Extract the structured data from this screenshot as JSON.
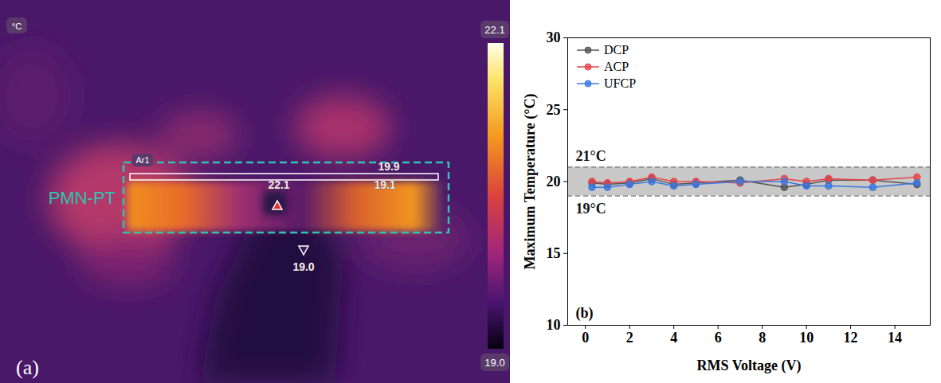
{
  "thermal_image": {
    "panel_label": "(a)",
    "unit": "°C",
    "colorbar_max": 22.1,
    "colorbar_min": {
      "value": 19.0,
      "label": "19.0"
    },
    "sample_label": "PMN-PT",
    "area": {
      "name": "Ar1",
      "value": 19.9
    },
    "hot_spot": 22.1,
    "spot": 19.1,
    "cold_spot": {
      "value": 19.0,
      "label": "19.0"
    }
  },
  "chart_data": {
    "type": "line",
    "panel_label": "(b)",
    "x_label": "RMS Voltage (V)",
    "y_label": "Maximum Temperature (°C)",
    "x": [
      0.3,
      1,
      2,
      3,
      4,
      5,
      7,
      9,
      10,
      11,
      13,
      15
    ],
    "series": [
      {
        "name": "DCP",
        "color": "#555555",
        "values": [
          19.9,
          19.8,
          19.9,
          20.2,
          19.8,
          19.9,
          20.1,
          19.6,
          19.8,
          20.1,
          20.1,
          19.8
        ]
      },
      {
        "name": "ACP",
        "color": "#e8454a",
        "values": [
          20.0,
          19.9,
          20.0,
          20.3,
          20.0,
          20.0,
          19.9,
          20.2,
          20.0,
          20.2,
          20.1,
          20.3
        ]
      },
      {
        "name": "UFCP",
        "color": "#3a78e0",
        "values": [
          19.6,
          19.6,
          19.8,
          20.0,
          19.7,
          19.8,
          20.0,
          20.0,
          19.7,
          19.7,
          19.6,
          19.9
        ]
      }
    ],
    "xlim": [
      -0.8,
      15.6
    ],
    "ylim": [
      10,
      30
    ],
    "xticks": [
      0,
      2,
      4,
      6,
      8,
      10,
      12,
      14
    ],
    "yticks": [
      10,
      15,
      20,
      25,
      30
    ],
    "annotations": [
      {
        "text": "21°C",
        "y": 21
      },
      {
        "text": "19°C",
        "y": 19
      }
    ],
    "legend": "top-left",
    "marker": "circle",
    "line_style": "solid",
    "grid": false
  }
}
